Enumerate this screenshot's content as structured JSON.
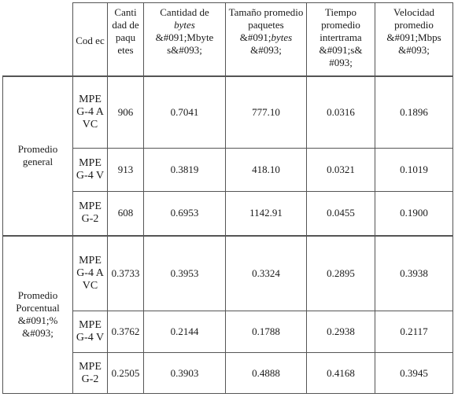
{
  "headers": {
    "blank": "",
    "codec": "Cod ec",
    "cantidad": "Canti dad de paqu etes",
    "bytes_pre": "Cantidad de",
    "bytes_it": "bytes",
    "bytes_post": "&#091;Mbyte s&#093;",
    "tam_pre": "Tamaño promedio paquetes &#091;",
    "tam_it": "bytes",
    "tam_post": "&#093;",
    "tiempo": "Tiempo promedio intertrama &#091;s& #093;",
    "velocidad": "Velocidad promedio &#091;Mbps &#093;"
  },
  "groups": [
    {
      "label": "Promedio general",
      "rows": [
        {
          "codec": "MPEG-4 AVC",
          "cantidad": "906",
          "bytes": "0.7041",
          "tamano": "777.10",
          "tiempo": "0.0316",
          "velocidad": "0.1896"
        },
        {
          "codec": "MPEG-4 V",
          "cantidad": "913",
          "bytes": "0.3819",
          "tamano": "418.10",
          "tiempo": "0.0321",
          "velocidad": "0.1019"
        },
        {
          "codec": "MPEG-2",
          "cantidad": "608",
          "bytes": "0.6953",
          "tamano": "1142.91",
          "tiempo": "0.0455",
          "velocidad": "0.1900"
        }
      ]
    },
    {
      "label": "Promedio Porcentual &#091;% &#093;",
      "rows": [
        {
          "codec": "MPEG-4 AVC",
          "cantidad": "0.3733",
          "bytes": "0.3953",
          "tamano": "0.3324",
          "tiempo": "0.2895",
          "velocidad": "0.3938"
        },
        {
          "codec": "MPEG-4 V",
          "cantidad": "0.3762",
          "bytes": "0.2144",
          "tamano": "0.1788",
          "tiempo": "0.2938",
          "velocidad": "0.2117"
        },
        {
          "codec": "MPEG-2",
          "cantidad": "0.2505",
          "bytes": "0.3903",
          "tamano": "0.4888",
          "tiempo": "0.4168",
          "velocidad": "0.3945"
        }
      ]
    }
  ]
}
